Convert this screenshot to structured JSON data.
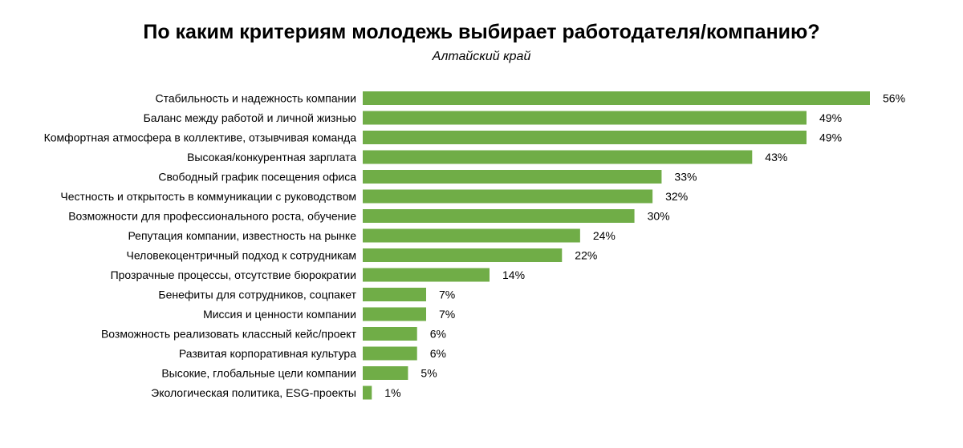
{
  "chart_data": {
    "type": "bar",
    "orientation": "horizontal",
    "title": "По каким критериям молодежь выбирает работодателя/компанию?",
    "subtitle": "Алтайский край",
    "xlabel": "",
    "ylabel": "",
    "xlim": [
      0,
      56
    ],
    "grid": false,
    "bar_color": "#70ad47",
    "categories": [
      "Стабильность и надежность компании",
      "Баланс между работой и личной жизнью",
      "Комфортная атмосфера в коллективе, отзывчивая команда",
      "Высокая/конкурентная зарплата",
      "Свободный график посещения офиса",
      "Честность и открытость в коммуникации с руководством",
      "Возможности для профессионального роста, обучение",
      "Репутация компании, известность на рынке",
      "Человекоцентричный подход к сотрудникам",
      "Прозрачные процессы, отсутствие бюрократии",
      "Бенефиты для сотрудников, соцпакет",
      "Миссия и ценности компании",
      "Возможность реализовать классный кейс/проект",
      "Развитая корпоративная культура",
      "Высокие, глобальные цели компании",
      "Экологическая политика, ESG-проекты"
    ],
    "values": [
      56,
      49,
      49,
      43,
      33,
      32,
      30,
      24,
      22,
      14,
      7,
      7,
      6,
      6,
      5,
      1
    ],
    "value_labels": [
      "56%",
      "49%",
      "49%",
      "43%",
      "33%",
      "32%",
      "30%",
      "24%",
      "22%",
      "14%",
      "7%",
      "7%",
      "6%",
      "6%",
      "5%",
      "1%"
    ]
  }
}
